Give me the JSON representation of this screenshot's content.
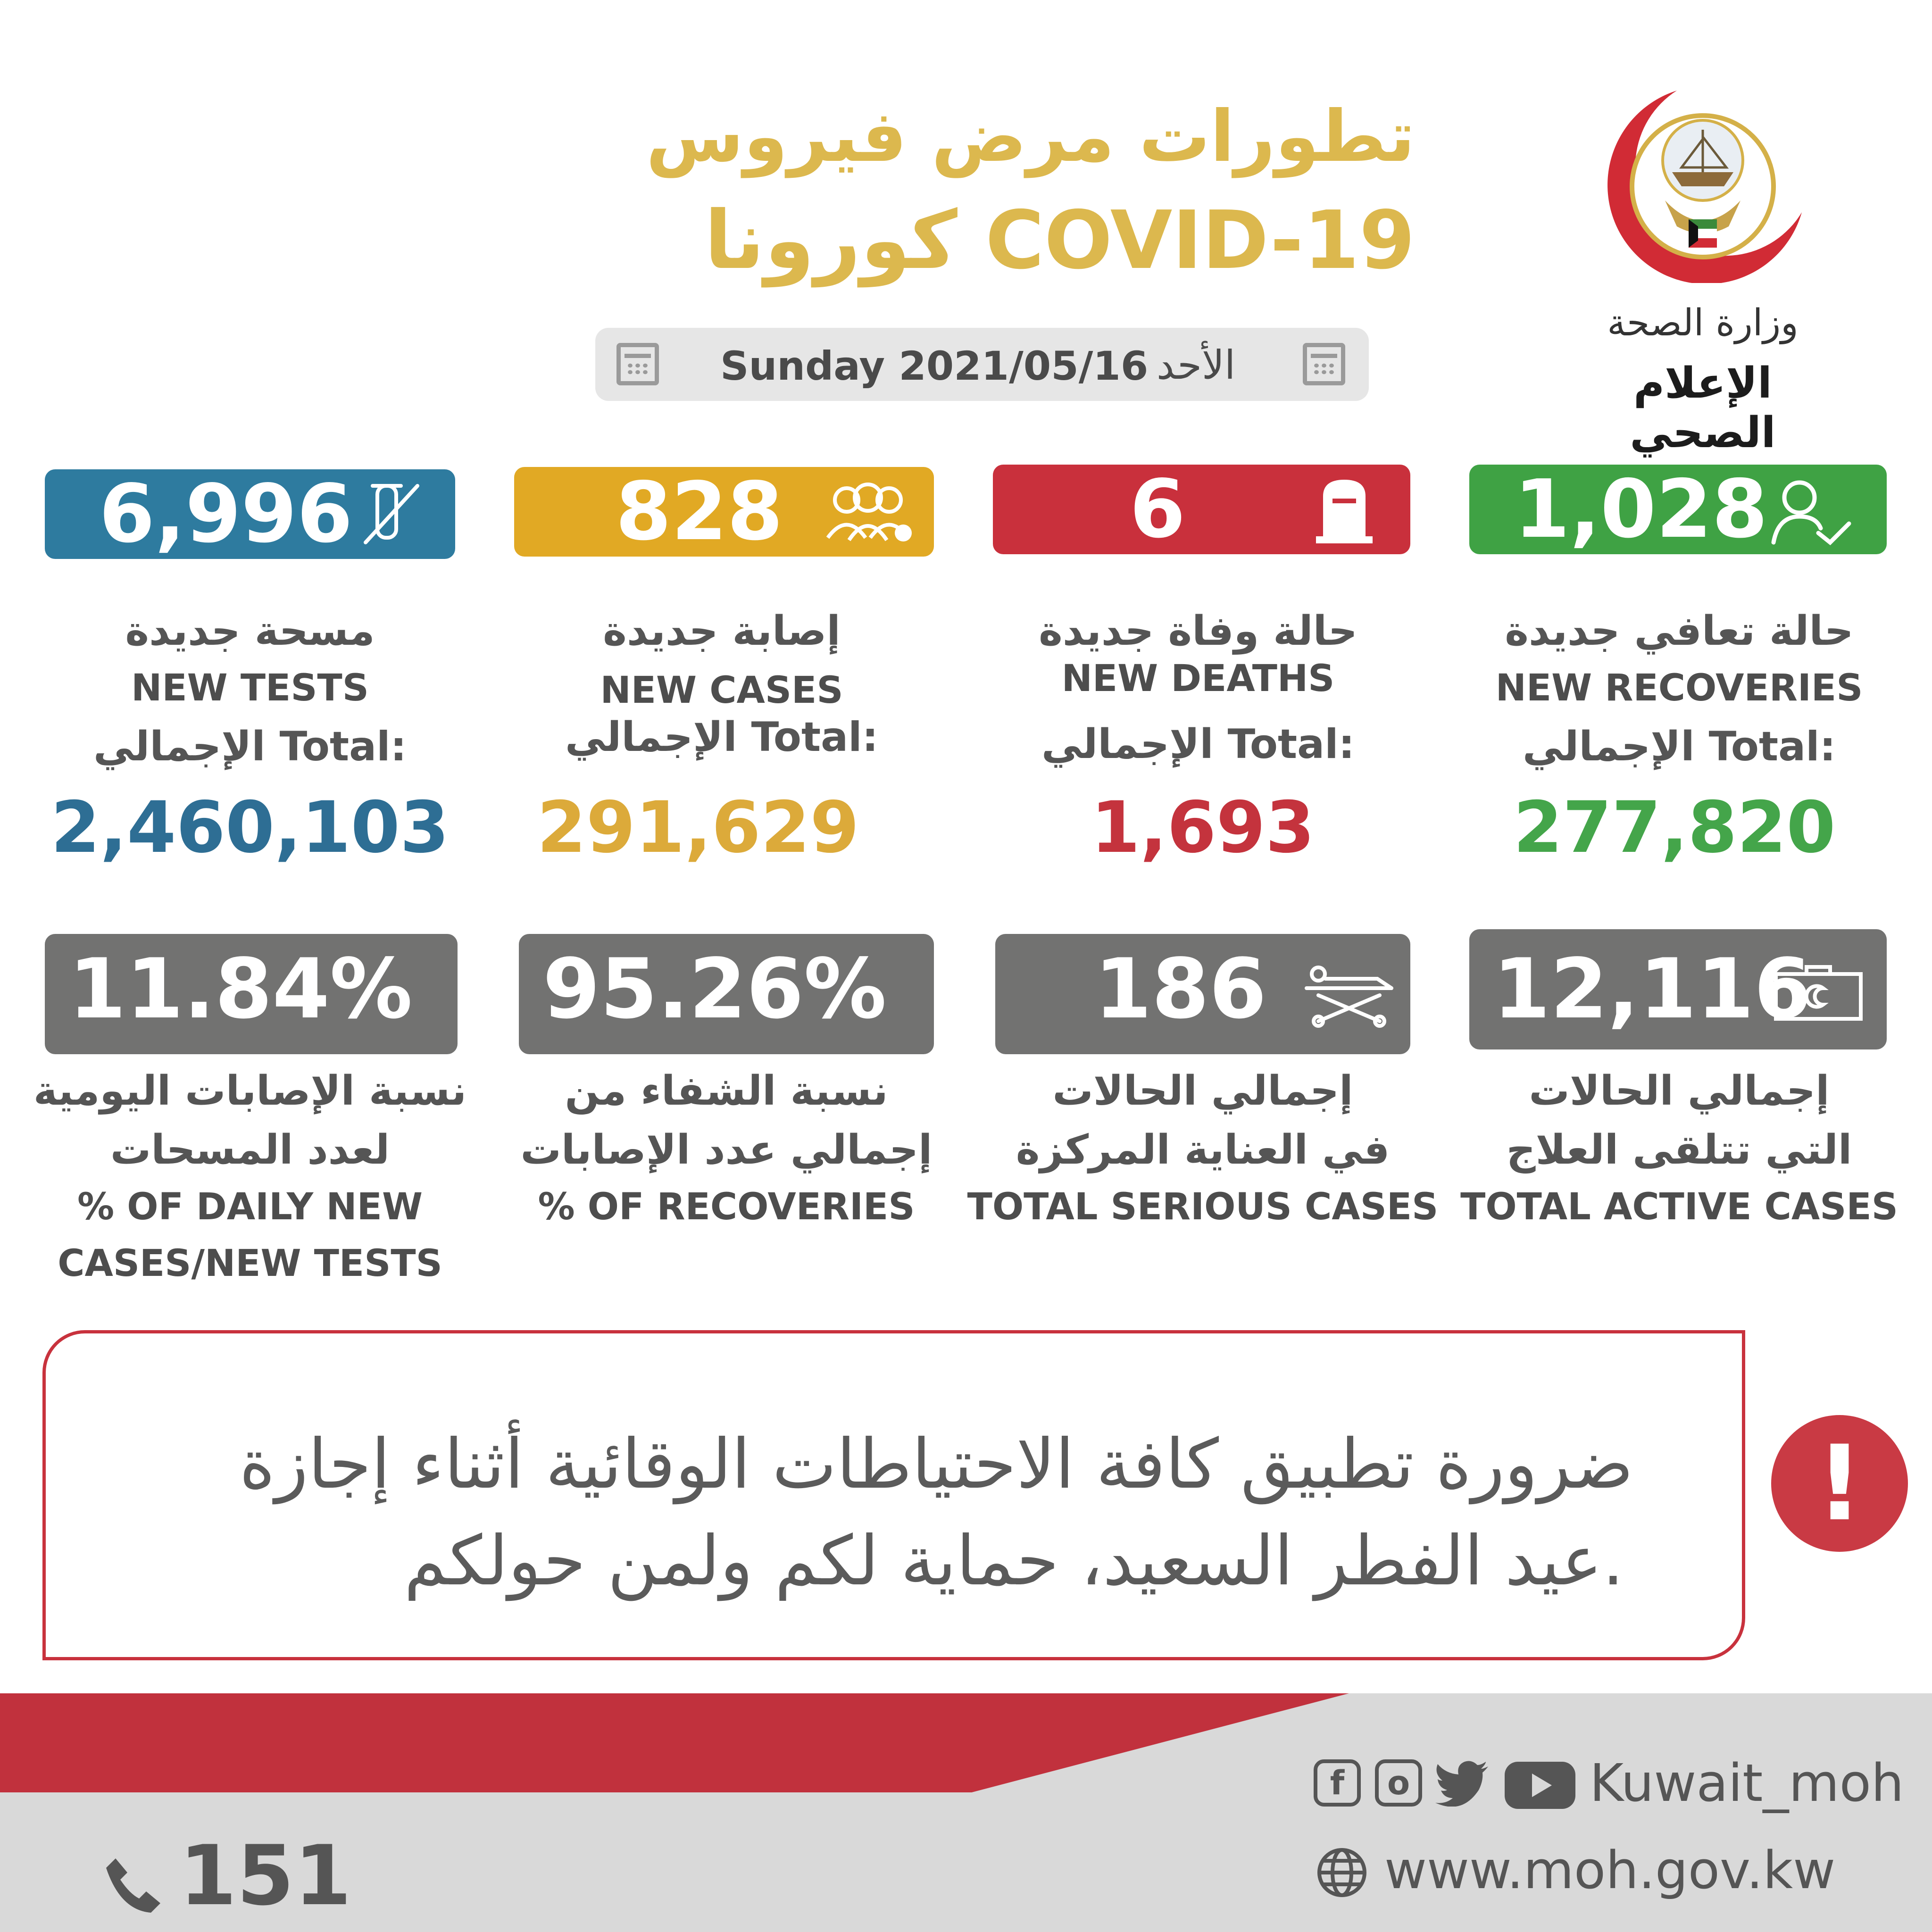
{
  "header": {
    "title_line1": "تطورات مرض فيروس",
    "title_line2": "كورونا COVID-19",
    "ministry_ar": "وزارة الصحة",
    "dept_ar": "الإعلام الصحي"
  },
  "date": {
    "day_ar": "الأحد",
    "date_en": "Sunday 2021/05/16"
  },
  "cards": {
    "tests": {
      "value": "6,996",
      "label_ar": "مسحة  جديدة",
      "label_en": "NEW TESTS",
      "total_label": "الإجمالي Total:",
      "total_value": "2,460,103",
      "color": "#2e7b9f",
      "icon": "test-tube-icon"
    },
    "cases": {
      "value": "828",
      "label_ar": "إصابة جديدة",
      "label_en": "NEW CASES",
      "total_label": "الإجمالي Total:",
      "total_value": "291,629",
      "color": "#e1a924",
      "icon": "people-virus-icon"
    },
    "deaths": {
      "value": "6",
      "label_ar": "حالة وفاة جديدة",
      "label_en": "NEW DEATHS",
      "total_label": "الإجمالي Total:",
      "total_value": "1,693",
      "color": "#c9303c",
      "icon": "tombstone-icon"
    },
    "recoveries": {
      "value": "1,028",
      "label_ar": "حالة تعافي جديدة",
      "label_en": "NEW RECOVERIES",
      "total_label": "الإجمالي Total:",
      "total_value": "277,820",
      "color": "#3fa244",
      "icon": "person-check-icon"
    }
  },
  "stats": {
    "daily_pct": {
      "value": "11.84%",
      "label_ar_1": "نسبة الإصابات اليومية",
      "label_ar_2": "لعدد المسحات",
      "label_en_1": "% OF DAILY NEW",
      "label_en_2": "CASES/NEW TESTS"
    },
    "recovery_pct": {
      "value": "95.26%",
      "label_ar_1": "نسبة الشفاء من",
      "label_ar_2": "إجمالي عدد الإصابات",
      "label_en_1": "% OF RECOVERIES"
    },
    "serious": {
      "value": "186",
      "label_ar_1": "إجمالي الحالات",
      "label_ar_2": "في العناية المركزة",
      "label_en_1": "TOTAL SERIOUS CASES",
      "icon": "stretcher-icon"
    },
    "active": {
      "value": "12,116",
      "label_ar_1": "إجمالي الحالات",
      "label_ar_2": "التي تتلقى العلاج",
      "label_en_1": "TOTAL ACTIVE CASES",
      "icon": "medical-kit-icon"
    }
  },
  "notice": {
    "line1": "ضرورة تطبيق كافة الاحتياطات الوقائية أثناء إجازة",
    "line2": "عيد الفطر السعيد، حماية لكم ولمن حولكم.",
    "mark": "!"
  },
  "footer": {
    "handle": "Kuwait_moh",
    "website": "www.moh.gov.kw",
    "hotline": "151",
    "social_icons": [
      "facebook-icon",
      "instagram-icon",
      "twitter-icon",
      "youtube-icon"
    ]
  }
}
